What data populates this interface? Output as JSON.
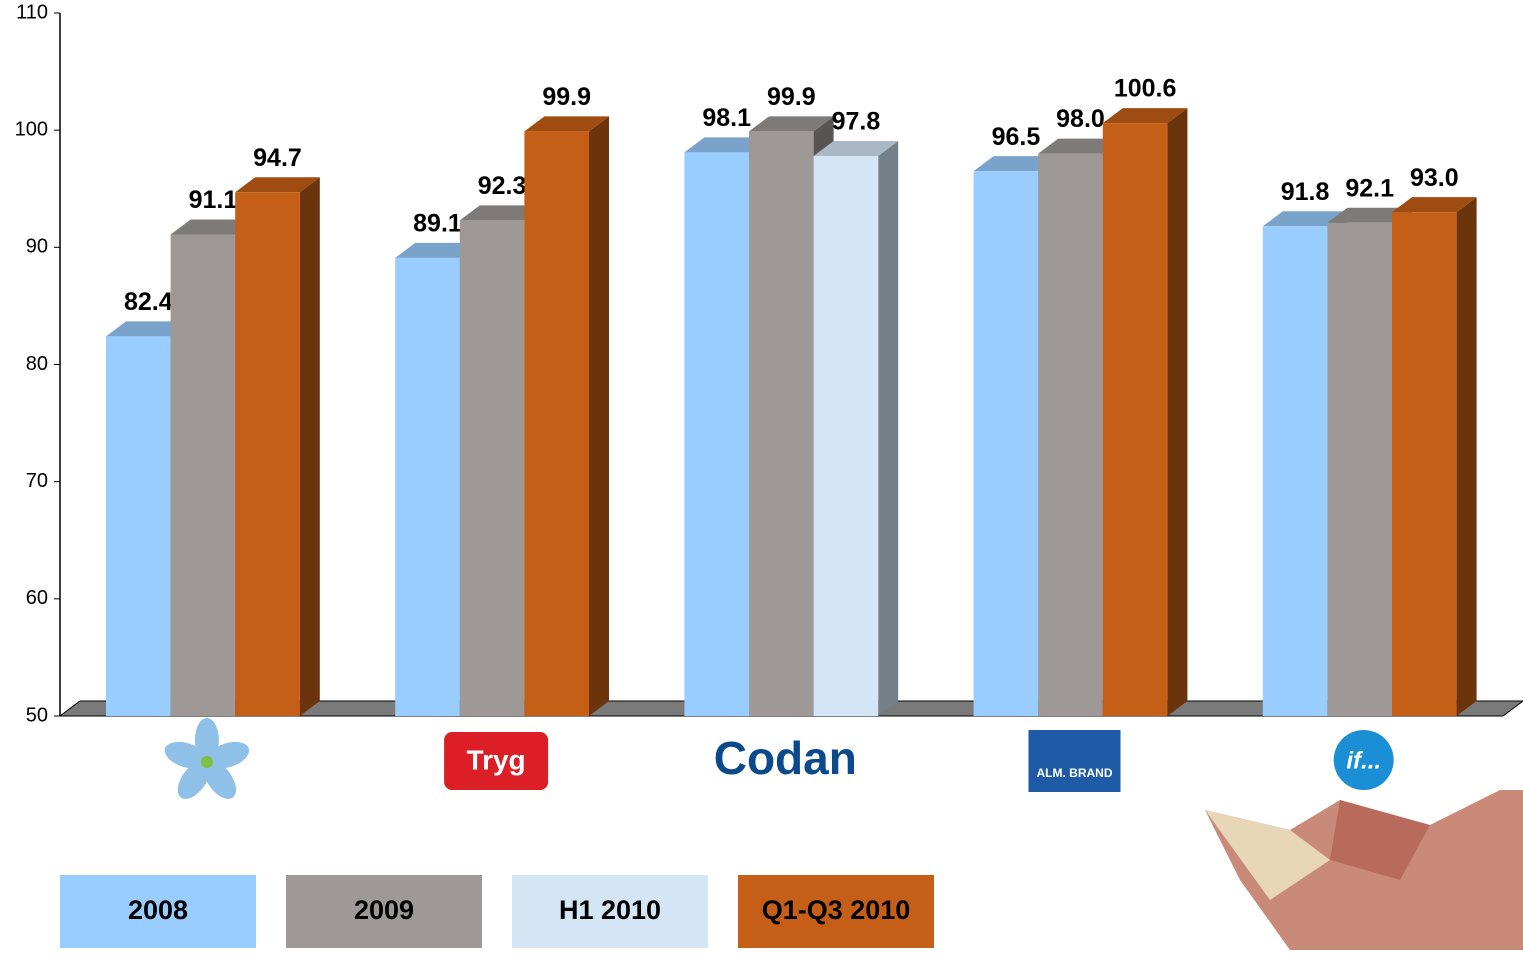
{
  "chart_data": {
    "type": "bar3d",
    "categories": [
      null,
      "Tryg",
      "Codan",
      "ALM. BRAND",
      "if..."
    ],
    "series": [
      {
        "name": "2008",
        "color": "#99ccff",
        "values": [
          82.4,
          89.1,
          98.1,
          96.5,
          91.8
        ],
        "value_labels": [
          "82.4",
          "89.1",
          "98.1",
          "96.5",
          "91.8"
        ]
      },
      {
        "name": "2009",
        "color": "#9e9896",
        "values": [
          91.1,
          92.3,
          99.9,
          98.0,
          92.1
        ],
        "value_labels": [
          "91.1",
          "92.3",
          "99.9",
          "98.0",
          "92.1"
        ]
      },
      {
        "name": "H1 2010",
        "color": "#d4e6f6",
        "values": [
          null,
          null,
          97.8,
          null,
          null
        ],
        "value_labels": [
          null,
          null,
          "97.8",
          null,
          null
        ]
      },
      {
        "name": "Q1-Q3 2010",
        "color": "#c55f17",
        "values": [
          94.7,
          99.9,
          null,
          100.6,
          93.0
        ],
        "value_labels": [
          "94.7",
          "99.9",
          null,
          "100.6",
          "93.0"
        ]
      }
    ],
    "ylim": [
      50,
      110
    ],
    "yticks": [
      50,
      60,
      70,
      80,
      90,
      100,
      110
    ]
  }
}
